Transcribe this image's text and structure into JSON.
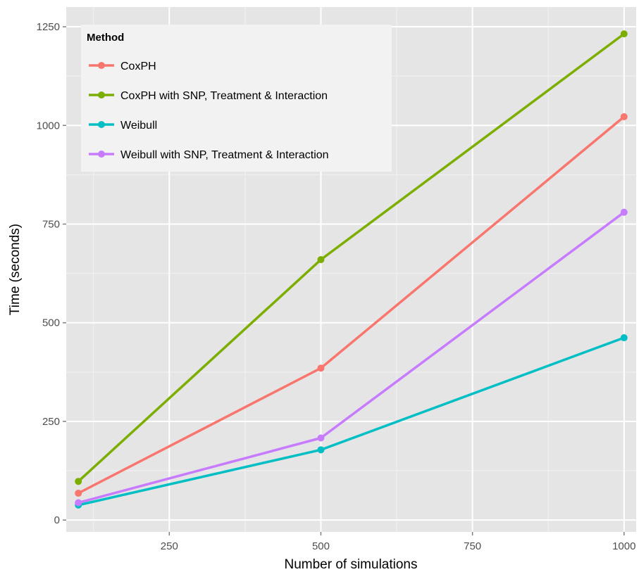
{
  "chart_data": {
    "type": "line",
    "xlabel": "Number of simulations",
    "ylabel": "Time (seconds)",
    "xlim": [
      80,
      1020
    ],
    "ylim": [
      -30,
      1300
    ],
    "x_ticks": [
      250,
      500,
      750,
      1000
    ],
    "y_ticks": [
      0,
      250,
      500,
      750,
      1000,
      1250
    ],
    "grid": true,
    "legend": {
      "title": "Method",
      "placement": "top-left"
    },
    "x": [
      100,
      500,
      1000
    ],
    "series": [
      {
        "name": "CoxPH",
        "color": "#f8766d",
        "values": [
          68,
          385,
          1022
        ]
      },
      {
        "name": "CoxPH with SNP, Treatment & Interaction",
        "color": "#7cae00",
        "values": [
          98,
          660,
          1232
        ]
      },
      {
        "name": "Weibull",
        "color": "#00bfc4",
        "values": [
          38,
          178,
          462
        ]
      },
      {
        "name": "Weibull with SNP, Treatment & Interaction",
        "color": "#c77cff",
        "values": [
          44,
          208,
          780
        ]
      }
    ]
  }
}
